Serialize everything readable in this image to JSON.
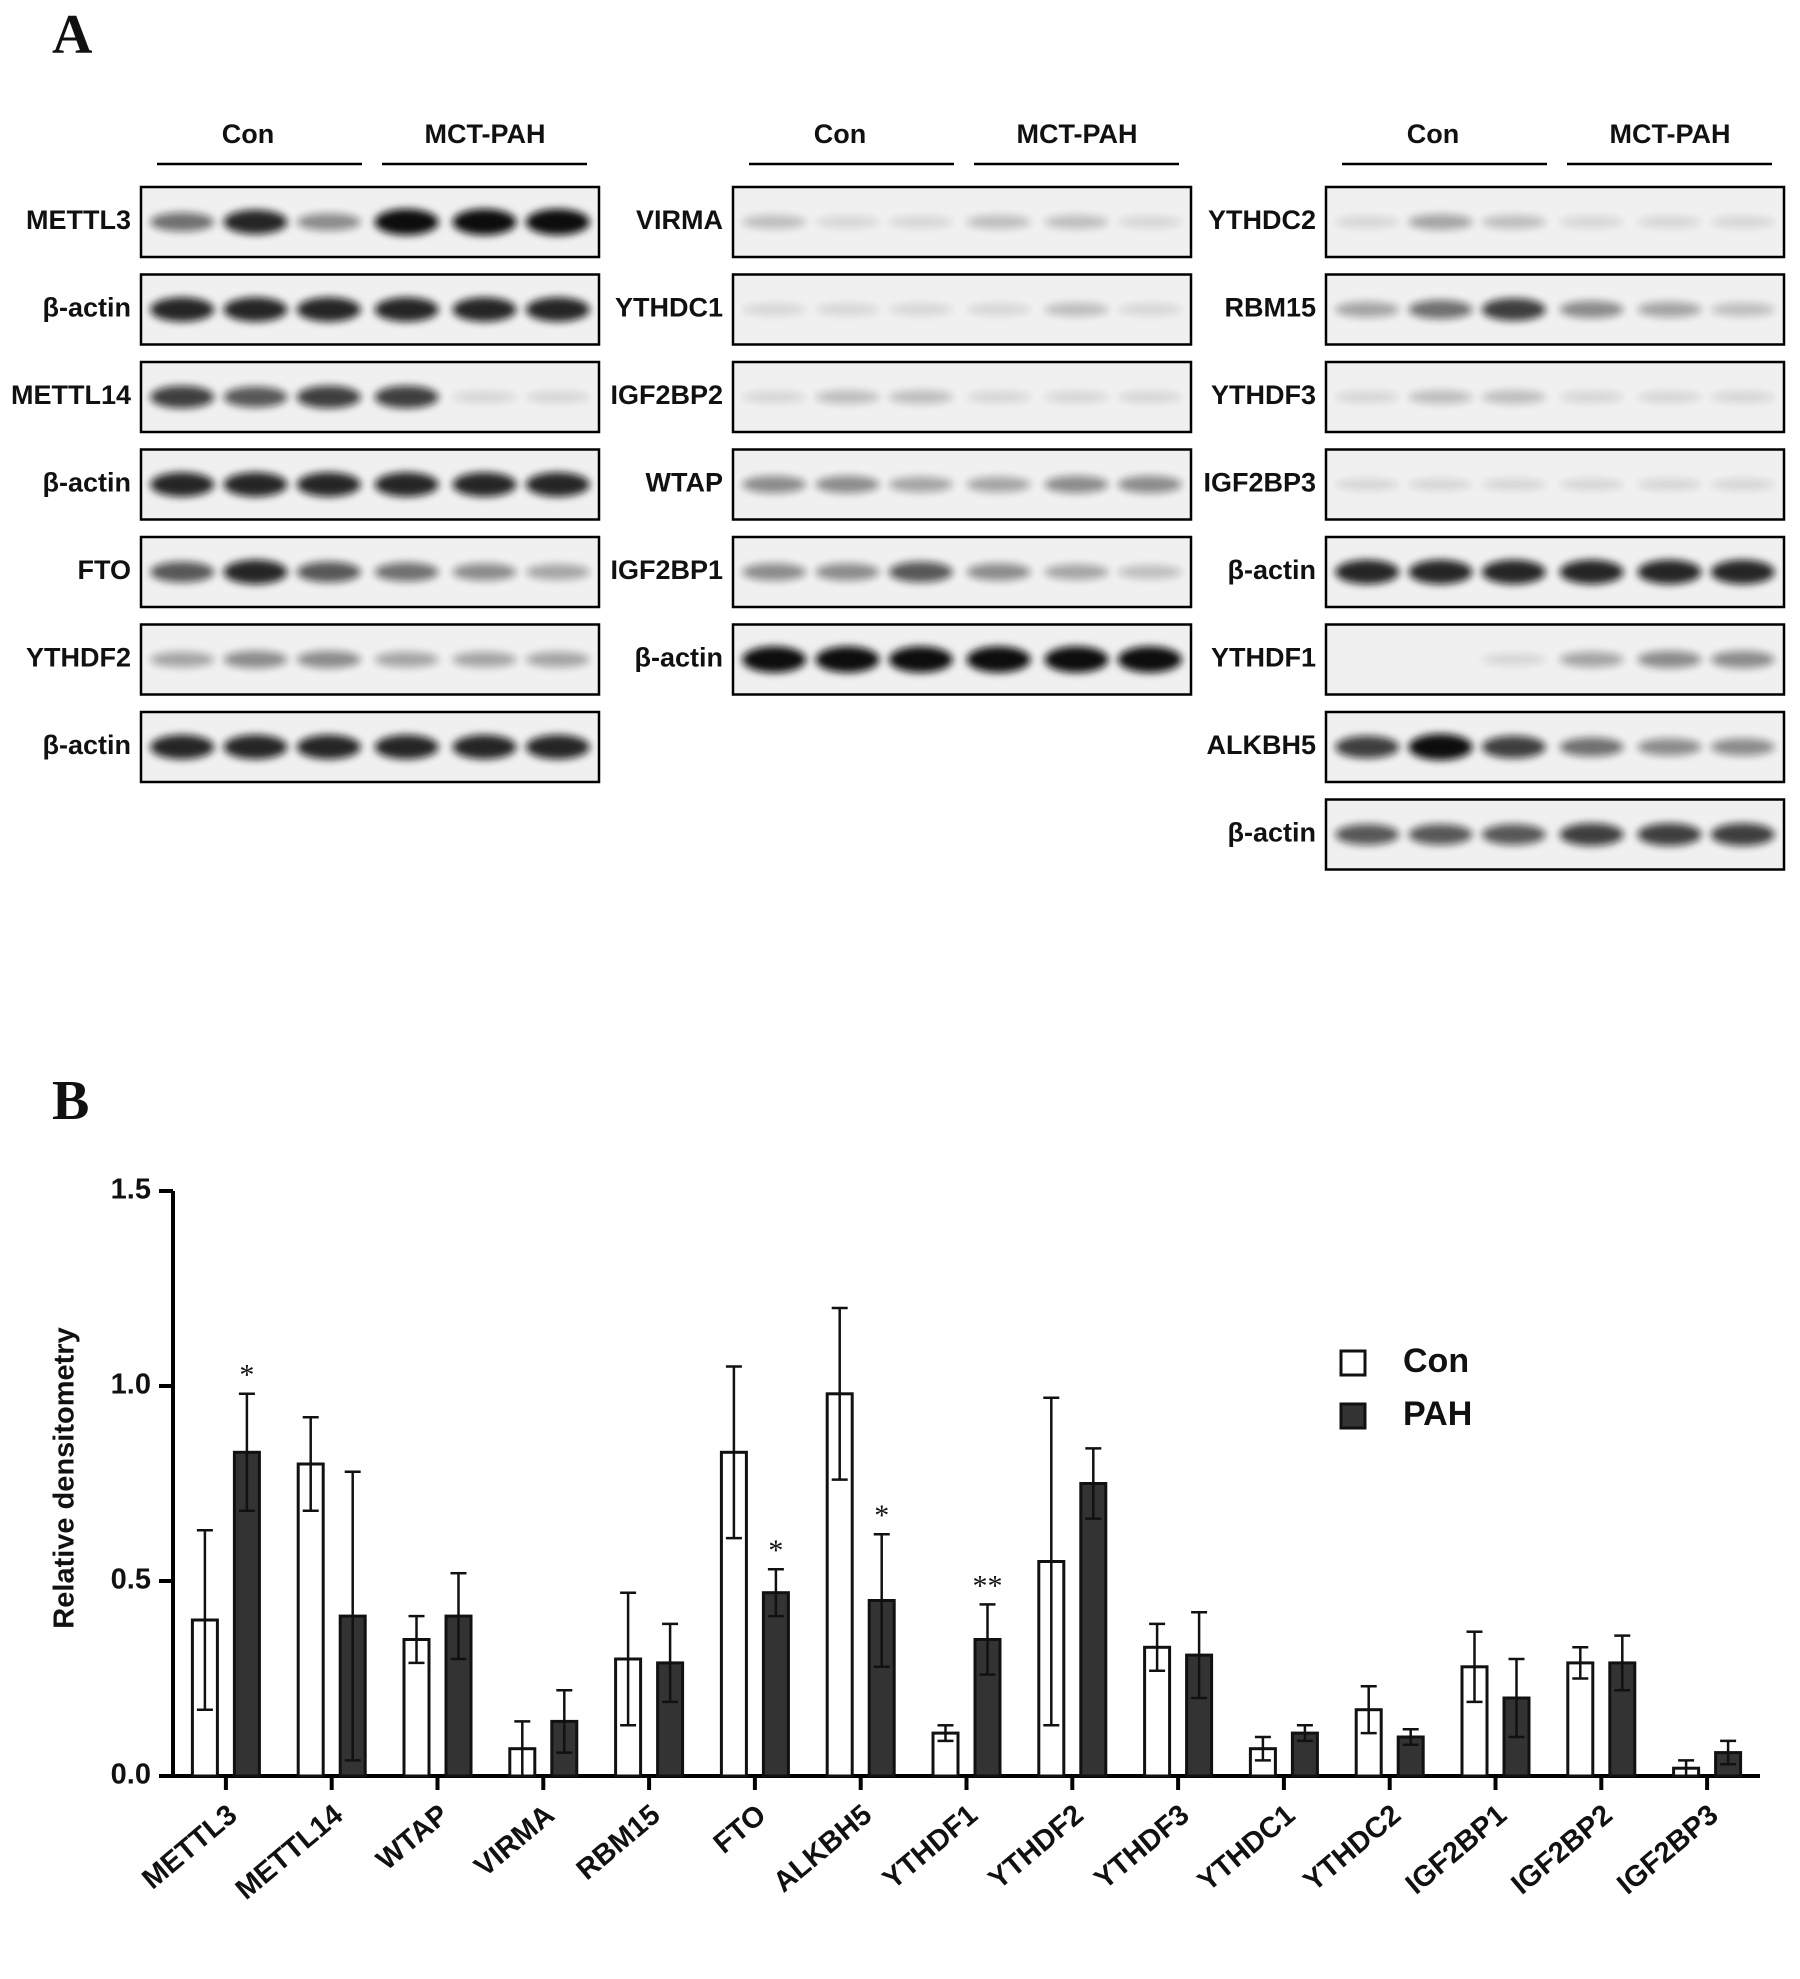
{
  "panel_a": {
    "label": "A",
    "groups": [
      "Con",
      "MCT-PAH"
    ],
    "blots": [
      [
        "METTL3",
        "β-actin",
        "METTL14",
        "β-actin",
        "FTO",
        "YTHDF2",
        "β-actin"
      ],
      [
        "VIRMA",
        "YTHDC1",
        "IGF2BP2",
        "WTAP",
        "IGF2BP1",
        "β-actin"
      ],
      [
        "YTHDC2",
        "RBM15",
        "YTHDF3",
        "IGF2BP3",
        "β-actin",
        "YTHDF1",
        "ALKBH5",
        "β-actin"
      ]
    ]
  },
  "panel_b": {
    "label": "B"
  },
  "chart_data": {
    "type": "bar",
    "y_label": "Relative densitometry",
    "categories": [
      "METTL3",
      "METTL14",
      "WTAP",
      "VIRMA",
      "RBM15",
      "FTO",
      "ALKBH5",
      "YTHDF1",
      "YTHDF2",
      "YTHDF3",
      "YTHDC1",
      "YTHDC2",
      "IGF2BP1",
      "IGF2BP2",
      "IGF2BP3"
    ],
    "series": [
      {
        "name": "Con",
        "color": "#ffffff",
        "values": [
          0.4,
          0.8,
          0.35,
          0.07,
          0.3,
          0.83,
          0.98,
          0.11,
          0.55,
          0.33,
          0.07,
          0.17,
          0.28,
          0.29,
          0.02
        ],
        "errors": [
          0.23,
          0.12,
          0.06,
          0.07,
          0.17,
          0.22,
          0.22,
          0.02,
          0.42,
          0.06,
          0.03,
          0.06,
          0.09,
          0.04,
          0.02
        ]
      },
      {
        "name": "PAH",
        "color": "#333333",
        "values": [
          0.83,
          0.41,
          0.41,
          0.14,
          0.29,
          0.47,
          0.45,
          0.35,
          0.75,
          0.31,
          0.11,
          0.1,
          0.2,
          0.29,
          0.06
        ],
        "errors": [
          0.15,
          0.37,
          0.11,
          0.08,
          0.1,
          0.06,
          0.17,
          0.09,
          0.09,
          0.11,
          0.02,
          0.02,
          0.1,
          0.07,
          0.03
        ],
        "annotations": [
          "*",
          null,
          null,
          null,
          null,
          "*",
          "*",
          "**",
          null,
          null,
          null,
          null,
          null,
          null,
          null
        ]
      }
    ],
    "ylim": [
      0,
      1.5
    ],
    "yticks": [
      {
        "value": 0,
        "label": "0.0"
      },
      {
        "value": 0.5,
        "label": "0.5"
      },
      {
        "value": 1,
        "label": "1.0"
      },
      {
        "value": 1.5,
        "label": "1.5"
      }
    ],
    "legend": "upper right"
  }
}
